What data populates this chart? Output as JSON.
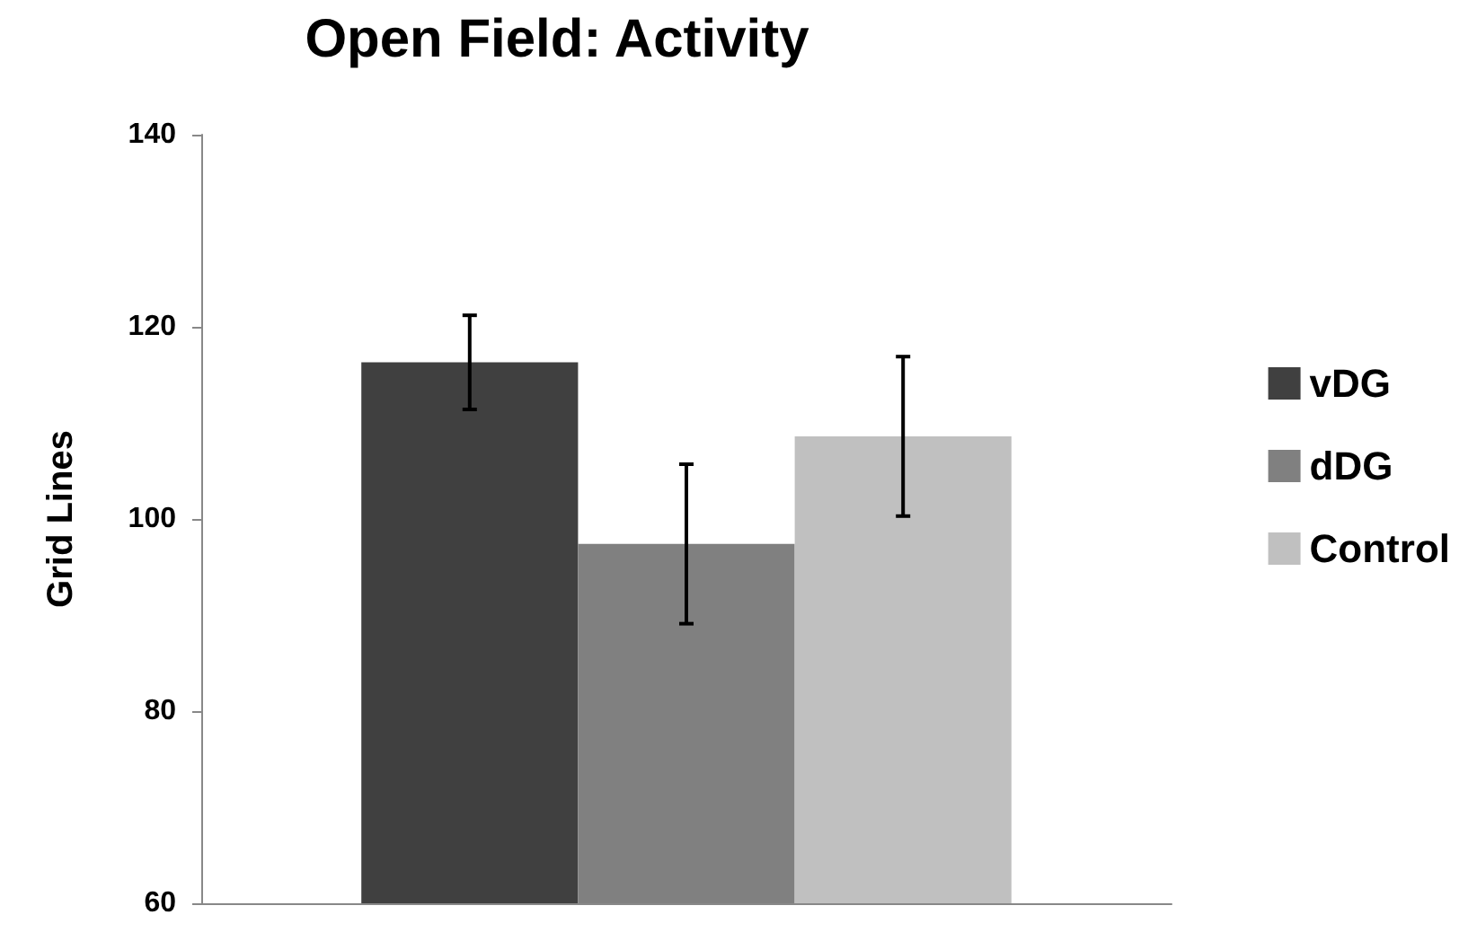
{
  "chart_data": {
    "type": "bar",
    "title": "Open Field: Activity",
    "ylabel": "Grid Lines",
    "categories": [
      null
    ],
    "series": [
      {
        "name": "vDG",
        "color": "#404040",
        "values": [
          116.3
        ],
        "errors": [
          4.9
        ]
      },
      {
        "name": "dDG",
        "color": "#808080",
        "values": [
          97.4
        ],
        "errors": [
          8.3
        ]
      },
      {
        "name": "Control",
        "color": "#c0c0c0",
        "values": [
          108.6
        ],
        "errors": [
          8.3
        ]
      }
    ],
    "ylim": [
      60,
      140
    ],
    "yticks": [
      60,
      80,
      100,
      120,
      140
    ],
    "grid": false,
    "legend": "right"
  }
}
